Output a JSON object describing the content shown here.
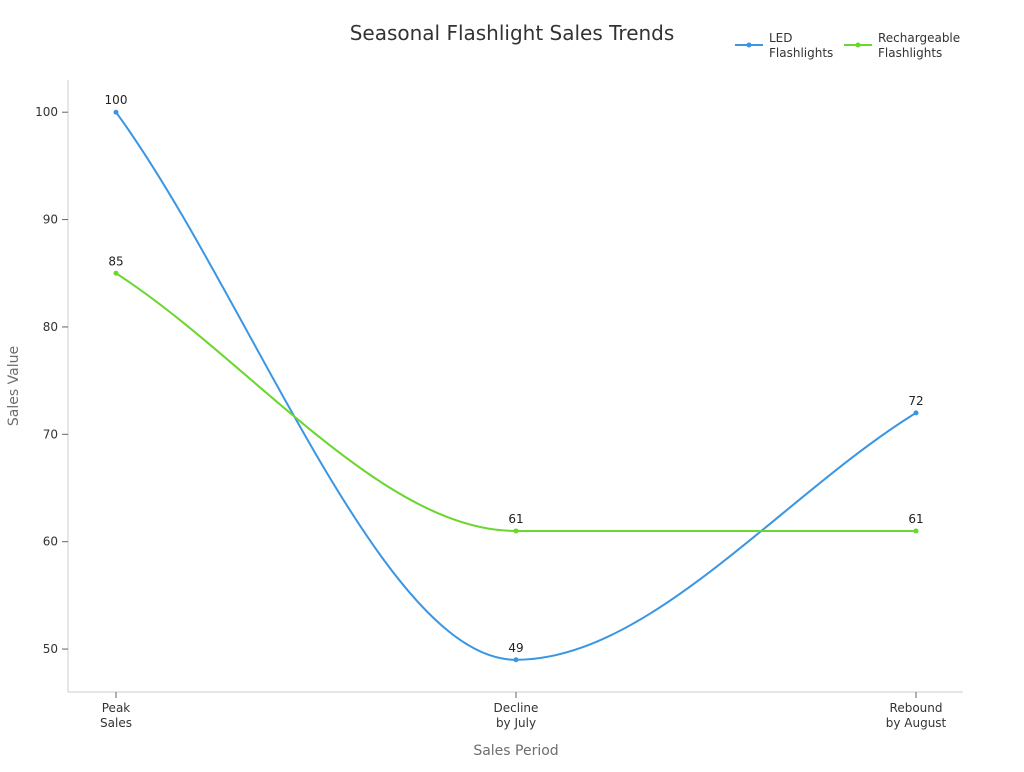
{
  "chart_data": {
    "type": "line",
    "title": "Seasonal Flashlight Sales Trends",
    "xlabel": "Sales Period",
    "ylabel": "Sales Value",
    "categories": [
      [
        "Peak",
        "Sales"
      ],
      [
        "Decline",
        "by July"
      ],
      [
        "Rebound",
        "by August"
      ]
    ],
    "ylim": [
      46,
      103
    ],
    "yticks": [
      50,
      60,
      70,
      80,
      90,
      100
    ],
    "grid": false,
    "legend_position": "top-right",
    "smooth": true,
    "series": [
      {
        "name": [
          "LED",
          "Flashlights"
        ],
        "color": "#3a96e3",
        "values": [
          100,
          49,
          72
        ]
      },
      {
        "name": [
          "Rechargeable",
          "Flashlights"
        ],
        "color": "#6ad62e",
        "values": [
          85,
          61,
          61
        ]
      }
    ]
  }
}
